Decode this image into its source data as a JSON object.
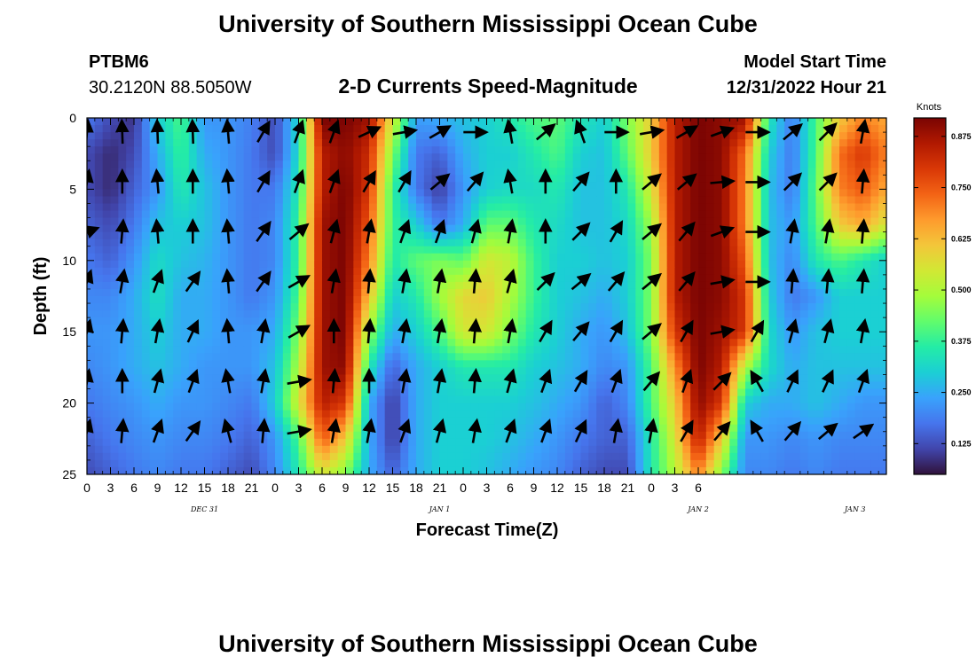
{
  "header": {
    "title": "University of Southern Mississippi Ocean Cube",
    "station_id": "PTBM6",
    "coords": "30.2120N  88.5050W",
    "subtitle": "2-D Currents Speed-Magnitude",
    "model_label": "Model Start Time",
    "model_time": "12/31/2022 Hour 21"
  },
  "footer": {
    "title": "University of Southern Mississippi Ocean Cube"
  },
  "chart_data": {
    "type": "heatmap",
    "xlabel": "Forecast Time(Z)",
    "ylabel": "Depth (ft)",
    "x_range_hours": [
      0,
      102
    ],
    "ylim": [
      0,
      25
    ],
    "y_inverted": true,
    "x_tick_labels": [
      "0",
      "3",
      "6",
      "9",
      "12",
      "15",
      "18",
      "21",
      "0",
      "3",
      "6",
      "9",
      "12",
      "15",
      "18",
      "21",
      "0",
      "3",
      "6",
      "9",
      "12",
      "15",
      "18",
      "21",
      "0",
      "3",
      "6"
    ],
    "y_ticks": [
      0,
      5,
      10,
      15,
      20,
      25
    ],
    "date_labels": [
      {
        "label": "DEC 31",
        "hour": 15
      },
      {
        "label": "JAN 1",
        "hour": 45
      },
      {
        "label": "JAN 2",
        "hour": 78
      },
      {
        "label": "JAN 3",
        "hour": 98
      }
    ],
    "colorbar": {
      "unit": "Knots",
      "range": [
        0.05,
        0.92
      ],
      "ticks": [
        "0.125",
        "0.250",
        "0.375",
        "0.500",
        "0.625",
        "0.750",
        "0.875"
      ],
      "tick_values": [
        0.125,
        0.25,
        0.375,
        0.5,
        0.625,
        0.75,
        0.875
      ],
      "colormap": [
        "#30123b",
        "#4145ab",
        "#4675ed",
        "#39a2fc",
        "#1bcfd4",
        "#24eca6",
        "#61fc6c",
        "#a4fc3b",
        "#d1e834",
        "#f3c63a",
        "#fe9b2d",
        "#f36315",
        "#d93806",
        "#b11901",
        "#7a0403"
      ]
    },
    "speed_field": {
      "hours": [
        0,
        3,
        6,
        9,
        12,
        15,
        18,
        21,
        24,
        27,
        30,
        33,
        36,
        39,
        42,
        45,
        48,
        51,
        54,
        57,
        60,
        63,
        66,
        69,
        72,
        75,
        78,
        81,
        84,
        87,
        90,
        93,
        96,
        99,
        102
      ],
      "depths": [
        0,
        2.5,
        5,
        7.5,
        10,
        12.5,
        15,
        17.5,
        20,
        22.5,
        25
      ],
      "speed_knots": [
        [
          0.18,
          0.12,
          0.09,
          0.3,
          0.4,
          0.22,
          0.22,
          0.19,
          0.12,
          0.32,
          0.92,
          0.92,
          0.88,
          0.55,
          0.23,
          0.25,
          0.28,
          0.3,
          0.35,
          0.4,
          0.42,
          0.35,
          0.3,
          0.45,
          0.6,
          0.85,
          0.92,
          0.9,
          0.88,
          0.35,
          0.18,
          0.4,
          0.6,
          0.7,
          0.65
        ],
        [
          0.12,
          0.08,
          0.12,
          0.25,
          0.38,
          0.25,
          0.22,
          0.18,
          0.12,
          0.32,
          0.85,
          0.9,
          0.82,
          0.45,
          0.18,
          0.15,
          0.25,
          0.3,
          0.3,
          0.35,
          0.4,
          0.3,
          0.28,
          0.42,
          0.6,
          0.85,
          0.92,
          0.9,
          0.72,
          0.3,
          0.18,
          0.4,
          0.72,
          0.8,
          0.7
        ],
        [
          0.12,
          0.08,
          0.15,
          0.22,
          0.35,
          0.28,
          0.22,
          0.18,
          0.18,
          0.35,
          0.85,
          0.92,
          0.8,
          0.38,
          0.18,
          0.1,
          0.22,
          0.3,
          0.32,
          0.32,
          0.35,
          0.28,
          0.28,
          0.35,
          0.55,
          0.85,
          0.92,
          0.9,
          0.7,
          0.28,
          0.18,
          0.42,
          0.7,
          0.75,
          0.65
        ],
        [
          0.15,
          0.12,
          0.18,
          0.28,
          0.3,
          0.28,
          0.22,
          0.18,
          0.2,
          0.38,
          0.88,
          0.92,
          0.75,
          0.38,
          0.3,
          0.18,
          0.25,
          0.42,
          0.42,
          0.35,
          0.32,
          0.28,
          0.28,
          0.32,
          0.48,
          0.85,
          0.92,
          0.9,
          0.7,
          0.28,
          0.22,
          0.4,
          0.6,
          0.65,
          0.55
        ],
        [
          0.18,
          0.15,
          0.22,
          0.32,
          0.28,
          0.26,
          0.22,
          0.18,
          0.2,
          0.38,
          0.88,
          0.92,
          0.7,
          0.35,
          0.42,
          0.45,
          0.42,
          0.55,
          0.52,
          0.38,
          0.3,
          0.3,
          0.28,
          0.3,
          0.45,
          0.85,
          0.92,
          0.9,
          0.75,
          0.28,
          0.2,
          0.35,
          0.4,
          0.35,
          0.3
        ],
        [
          0.2,
          0.2,
          0.25,
          0.33,
          0.25,
          0.25,
          0.22,
          0.18,
          0.22,
          0.4,
          0.88,
          0.92,
          0.62,
          0.3,
          0.35,
          0.48,
          0.58,
          0.6,
          0.5,
          0.38,
          0.3,
          0.28,
          0.25,
          0.3,
          0.45,
          0.85,
          0.92,
          0.9,
          0.8,
          0.3,
          0.18,
          0.22,
          0.3,
          0.3,
          0.3
        ],
        [
          0.22,
          0.22,
          0.25,
          0.3,
          0.25,
          0.25,
          0.22,
          0.22,
          0.25,
          0.45,
          0.88,
          0.92,
          0.48,
          0.25,
          0.3,
          0.4,
          0.55,
          0.55,
          0.45,
          0.35,
          0.3,
          0.25,
          0.22,
          0.28,
          0.45,
          0.8,
          0.92,
          0.88,
          0.8,
          0.32,
          0.22,
          0.28,
          0.3,
          0.3,
          0.3
        ],
        [
          0.2,
          0.22,
          0.25,
          0.28,
          0.25,
          0.22,
          0.22,
          0.22,
          0.28,
          0.5,
          0.88,
          0.9,
          0.35,
          0.15,
          0.25,
          0.3,
          0.35,
          0.35,
          0.35,
          0.3,
          0.28,
          0.25,
          0.2,
          0.22,
          0.4,
          0.68,
          0.92,
          0.85,
          0.5,
          0.32,
          0.25,
          0.28,
          0.28,
          0.28,
          0.28
        ],
        [
          0.18,
          0.2,
          0.22,
          0.25,
          0.22,
          0.22,
          0.2,
          0.18,
          0.3,
          0.55,
          0.85,
          0.8,
          0.25,
          0.1,
          0.25,
          0.3,
          0.3,
          0.3,
          0.3,
          0.28,
          0.25,
          0.22,
          0.15,
          0.2,
          0.4,
          0.6,
          0.9,
          0.8,
          0.3,
          0.25,
          0.25,
          0.28,
          0.25,
          0.22,
          0.22
        ],
        [
          0.15,
          0.18,
          0.2,
          0.22,
          0.2,
          0.2,
          0.18,
          0.15,
          0.22,
          0.4,
          0.75,
          0.6,
          0.25,
          0.1,
          0.25,
          0.3,
          0.3,
          0.3,
          0.28,
          0.25,
          0.22,
          0.18,
          0.15,
          0.15,
          0.35,
          0.55,
          0.85,
          0.6,
          0.22,
          0.22,
          0.2,
          0.22,
          0.2,
          0.2,
          0.2
        ],
        [
          0.12,
          0.15,
          0.18,
          0.2,
          0.18,
          0.18,
          0.15,
          0.12,
          0.2,
          0.35,
          0.55,
          0.45,
          0.25,
          0.15,
          0.25,
          0.3,
          0.3,
          0.28,
          0.25,
          0.22,
          0.2,
          0.15,
          0.12,
          0.12,
          0.35,
          0.5,
          0.7,
          0.45,
          0.2,
          0.2,
          0.18,
          0.2,
          0.18,
          0.18,
          0.18
        ]
      ]
    },
    "vectors": {
      "hours": [
        0,
        4.5,
        9,
        13.5,
        18,
        22.5,
        27,
        31.5,
        36,
        40.5,
        45,
        49.5,
        54,
        58.5,
        63,
        67.5,
        72,
        76.5,
        81,
        85.5,
        90,
        94.5,
        99
      ],
      "depths": [
        1,
        4.5,
        8,
        11.5,
        15,
        18.5,
        22
      ],
      "angle_deg": [
        [
          85,
          92,
          92,
          92,
          95,
          60,
          70,
          70,
          25,
          10,
          30,
          0,
          100,
          40,
          110,
          0,
          10,
          30,
          20,
          0,
          40,
          45,
          80
        ],
        [
          80,
          90,
          95,
          90,
          95,
          60,
          70,
          70,
          60,
          60,
          40,
          50,
          100,
          90,
          50,
          90,
          40,
          40,
          5,
          0,
          45,
          45,
          85
        ],
        [
          20,
          85,
          95,
          90,
          95,
          55,
          40,
          75,
          80,
          70,
          70,
          75,
          80,
          90,
          45,
          60,
          40,
          50,
          20,
          0,
          80,
          80,
          85
        ],
        [
          70,
          80,
          70,
          55,
          95,
          55,
          30,
          80,
          85,
          80,
          80,
          85,
          75,
          45,
          40,
          50,
          40,
          50,
          10,
          0,
          85,
          85,
          85
        ],
        [
          75,
          85,
          80,
          65,
          95,
          80,
          30,
          90,
          85,
          80,
          80,
          85,
          80,
          60,
          50,
          60,
          40,
          60,
          10,
          60,
          75,
          75,
          80
        ],
        [
          80,
          90,
          75,
          70,
          100,
          80,
          10,
          85,
          90,
          80,
          80,
          85,
          75,
          70,
          60,
          70,
          50,
          70,
          45,
          120,
          65,
          65,
          70
        ],
        [
          75,
          85,
          70,
          55,
          105,
          85,
          10,
          80,
          80,
          70,
          75,
          80,
          70,
          70,
          65,
          80,
          80,
          60,
          50,
          120,
          50,
          40,
          35
        ]
      ]
    }
  }
}
